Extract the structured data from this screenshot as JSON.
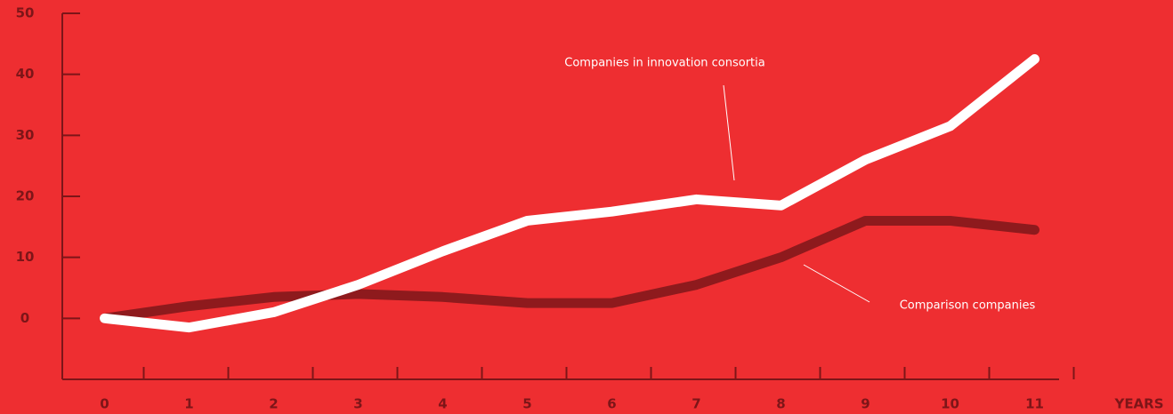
{
  "chart_data": {
    "type": "line",
    "x": [
      0,
      1,
      2,
      3,
      4,
      5,
      6,
      7,
      8,
      9,
      10,
      11
    ],
    "xlim": [
      -0.5,
      11.5
    ],
    "xticks": [
      0,
      1,
      2,
      3,
      4,
      5,
      6,
      7,
      8,
      9,
      10,
      11
    ],
    "x_label": "YEARS",
    "ylim": [
      -10,
      50
    ],
    "yticks": [
      0,
      10,
      20,
      30,
      40,
      50
    ],
    "series": [
      {
        "name": "Companies in innovation consortia",
        "color": "#ffffff",
        "values": [
          0,
          -1.5,
          1,
          5.5,
          11,
          16,
          17.5,
          19.5,
          18.5,
          26,
          31.5,
          42.5
        ]
      },
      {
        "name": "Comparison companies",
        "color": "#8e1a1d",
        "values": [
          0,
          2,
          3.5,
          4,
          3.5,
          2.5,
          2.5,
          5.5,
          10,
          16,
          16,
          14.5
        ]
      }
    ]
  }
}
